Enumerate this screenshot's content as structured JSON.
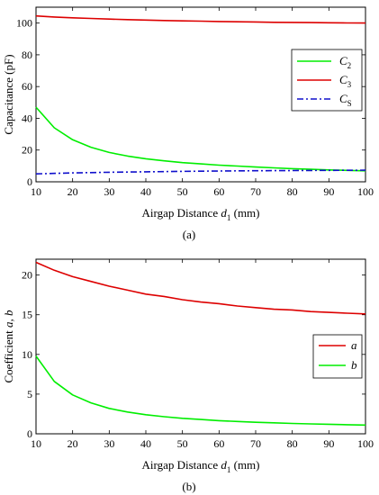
{
  "chart_data": [
    {
      "type": "line",
      "xlabel": "Airgap Distance",
      "xlabel_var": "d",
      "xlabel_sub": "1",
      "xlabel_unit": "(mm)",
      "ylabel": "Capacitance (pF)",
      "caption": "(a)",
      "xlim": [
        10,
        100
      ],
      "ylim": [
        0,
        110
      ],
      "xticks": [
        10,
        20,
        30,
        40,
        50,
        60,
        70,
        80,
        90,
        100
      ],
      "yticks": [
        0,
        20,
        40,
        60,
        80,
        100
      ],
      "legend_position": "middle-right",
      "series": [
        {
          "name": "C",
          "sub": "2",
          "color": "#00ee00",
          "dash": "solid",
          "x": [
            10,
            15,
            20,
            25,
            30,
            35,
            40,
            45,
            50,
            55,
            60,
            65,
            70,
            75,
            80,
            85,
            90,
            95,
            100
          ],
          "y": [
            47,
            34,
            26.5,
            21.8,
            18.5,
            16.2,
            14.5,
            13.2,
            12.1,
            11.3,
            10.5,
            9.9,
            9.3,
            8.8,
            8.3,
            7.9,
            7.5,
            7.2,
            6.9
          ]
        },
        {
          "name": "C",
          "sub": "3",
          "color": "#dd0000",
          "dash": "solid",
          "x": [
            10,
            15,
            20,
            25,
            30,
            35,
            40,
            45,
            50,
            55,
            60,
            65,
            70,
            75,
            80,
            85,
            90,
            95,
            100
          ],
          "y": [
            104.5,
            103.8,
            103.3,
            102.9,
            102.5,
            102.2,
            101.9,
            101.6,
            101.4,
            101.2,
            101.0,
            100.8,
            100.7,
            100.5,
            100.4,
            100.3,
            100.2,
            100.1,
            100.0
          ]
        },
        {
          "name": "C",
          "sub": "S",
          "color": "#1010cc",
          "dash": "dashdot",
          "x": [
            10,
            20,
            30,
            40,
            50,
            60,
            70,
            80,
            90,
            100
          ],
          "y": [
            5.0,
            5.6,
            6.0,
            6.3,
            6.6,
            6.8,
            7.0,
            7.1,
            7.2,
            7.3
          ]
        }
      ]
    },
    {
      "type": "line",
      "xlabel": "Airgap Distance",
      "xlabel_var": "d",
      "xlabel_sub": "1",
      "xlabel_unit": "(mm)",
      "ylabel": "Coefficient",
      "ylabel_vars": "a, b",
      "caption": "(b)",
      "xlim": [
        10,
        100
      ],
      "ylim": [
        0,
        22
      ],
      "xticks": [
        10,
        20,
        30,
        40,
        50,
        60,
        70,
        80,
        90,
        100
      ],
      "yticks": [
        0,
        5,
        10,
        15,
        20
      ],
      "legend_position": "middle-right",
      "series": [
        {
          "name": "a",
          "color": "#dd0000",
          "dash": "solid",
          "x": [
            10,
            15,
            20,
            25,
            30,
            35,
            40,
            45,
            50,
            55,
            60,
            65,
            70,
            75,
            80,
            85,
            90,
            95,
            100
          ],
          "y": [
            21.6,
            20.6,
            19.8,
            19.2,
            18.6,
            18.1,
            17.6,
            17.3,
            16.9,
            16.6,
            16.4,
            16.1,
            15.9,
            15.7,
            15.6,
            15.4,
            15.3,
            15.2,
            15.1
          ]
        },
        {
          "name": "b",
          "color": "#00ee00",
          "dash": "solid",
          "x": [
            10,
            15,
            20,
            25,
            30,
            35,
            40,
            45,
            50,
            55,
            60,
            65,
            70,
            75,
            80,
            85,
            90,
            95,
            100
          ],
          "y": [
            9.8,
            6.6,
            4.9,
            3.9,
            3.2,
            2.75,
            2.4,
            2.15,
            1.95,
            1.8,
            1.65,
            1.55,
            1.45,
            1.38,
            1.3,
            1.25,
            1.2,
            1.15,
            1.1
          ]
        }
      ]
    }
  ]
}
